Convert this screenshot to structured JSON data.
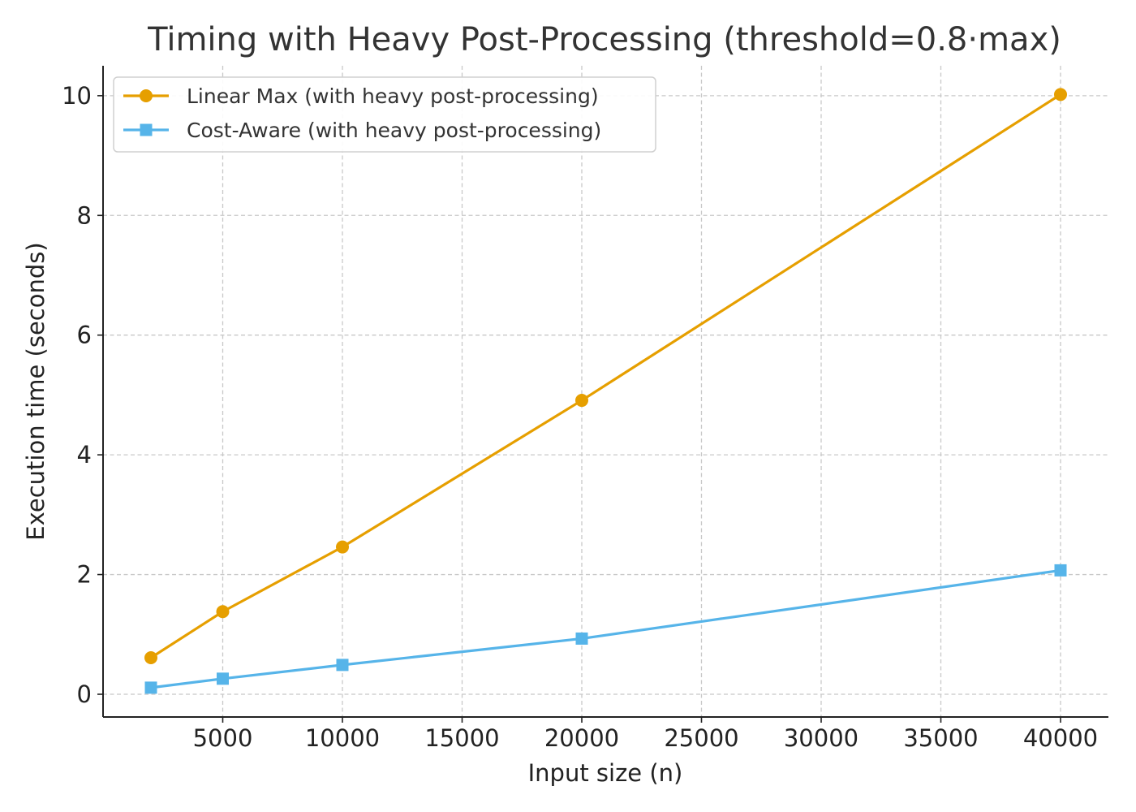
{
  "chart_data": {
    "type": "line",
    "title": "Timing with Heavy Post-Processing (threshold=0.8·max)",
    "xlabel": "Input size (n)",
    "ylabel": "Execution time (seconds)",
    "x": [
      2000,
      5000,
      10000,
      20000,
      40000
    ],
    "xlim": [
      0,
      42000
    ],
    "ylim": [
      -0.38,
      10.5
    ],
    "x_ticks": [
      5000,
      10000,
      15000,
      20000,
      25000,
      30000,
      35000,
      40000
    ],
    "y_ticks": [
      0,
      2,
      4,
      6,
      8,
      10
    ],
    "grid": true,
    "legend_position": "top-left",
    "series": [
      {
        "name": "Linear Max (with heavy post-processing)",
        "color": "#E69F00",
        "marker": "circle",
        "values": [
          0.61,
          1.38,
          2.46,
          4.91,
          10.02
        ]
      },
      {
        "name": "Cost-Aware (with heavy post-processing)",
        "color": "#56B4E9",
        "marker": "square",
        "values": [
          0.11,
          0.26,
          0.49,
          0.93,
          2.07
        ]
      }
    ]
  }
}
